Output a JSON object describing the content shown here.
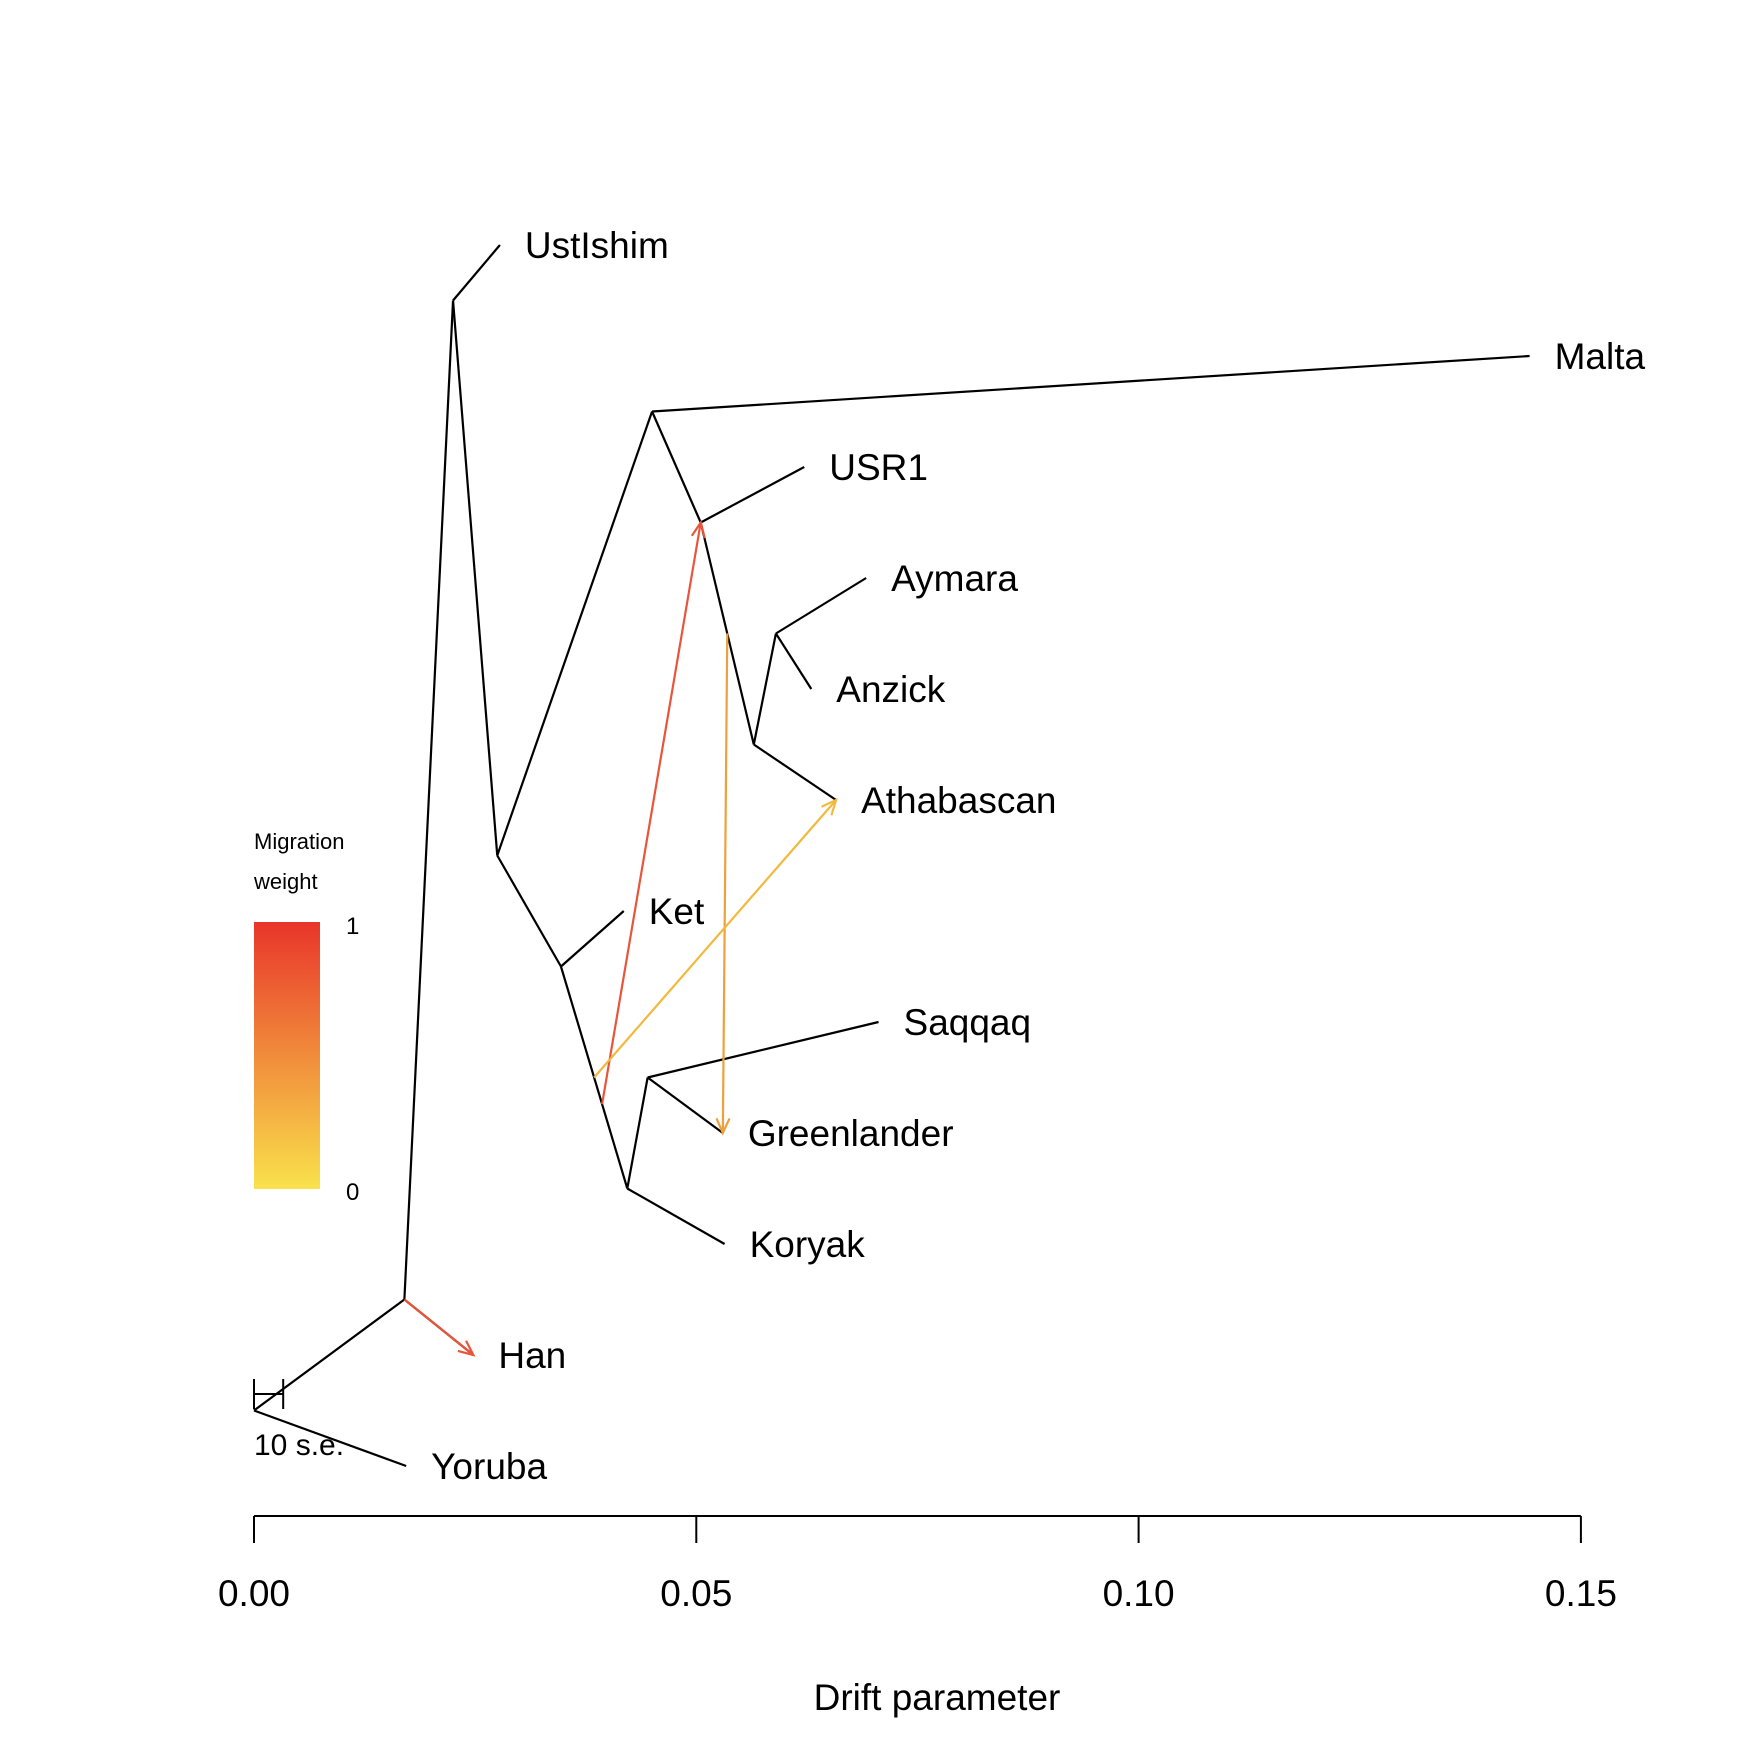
{
  "tree": {
    "nodes": {
      "root": {
        "drift": 0.0,
        "row": 11.0
      },
      "n1": {
        "drift": 0.017,
        "row": 10.0
      },
      "n2": {
        "drift": 0.0225,
        "row": 1.0
      },
      "n3": {
        "drift": 0.0275,
        "row": 6.0
      },
      "n4": {
        "drift": 0.045,
        "row": 2.0
      },
      "n5": {
        "drift": 0.0505,
        "row": 3.0
      },
      "n6": {
        "drift": 0.0565,
        "row": 5.0
      },
      "n7": {
        "drift": 0.059,
        "row": 4.0
      },
      "n8": {
        "drift": 0.0347,
        "row": 7.0
      },
      "n9": {
        "drift": 0.0422,
        "row": 9.0
      },
      "n10": {
        "drift": 0.0445,
        "row": 8.0
      },
      "Yoruba": {
        "drift": 0.0172,
        "row": 11.5
      },
      "Han": {
        "drift": 0.0248,
        "row": 10.5
      },
      "UstIshim": {
        "drift": 0.0278,
        "row": 0.5
      },
      "Malta": {
        "drift": 0.1442,
        "row": 1.5
      },
      "USR1": {
        "drift": 0.0622,
        "row": 2.5
      },
      "Aymara": {
        "drift": 0.0692,
        "row": 3.5
      },
      "Anzick": {
        "drift": 0.063,
        "row": 4.5
      },
      "Athabascan": {
        "drift": 0.0658,
        "row": 5.5
      },
      "Ket": {
        "drift": 0.0418,
        "row": 6.5
      },
      "Saqqaq": {
        "drift": 0.0706,
        "row": 7.5
      },
      "Greenlander": {
        "drift": 0.053,
        "row": 8.5
      },
      "Koryak": {
        "drift": 0.0532,
        "row": 9.5
      }
    },
    "edges": [
      [
        "root",
        "n1"
      ],
      [
        "root",
        "Yoruba"
      ],
      [
        "n1",
        "n2"
      ],
      [
        "n1",
        "Han"
      ],
      [
        "n2",
        "UstIshim"
      ],
      [
        "n2",
        "n3"
      ],
      [
        "n3",
        "n4"
      ],
      [
        "n3",
        "n8"
      ],
      [
        "n4",
        "Malta"
      ],
      [
        "n4",
        "n5"
      ],
      [
        "n5",
        "USR1"
      ],
      [
        "n5",
        "n6"
      ],
      [
        "n6",
        "n7"
      ],
      [
        "n6",
        "Athabascan"
      ],
      [
        "n7",
        "Aymara"
      ],
      [
        "n7",
        "Anzick"
      ],
      [
        "n8",
        "Ket"
      ],
      [
        "n8",
        "n9"
      ],
      [
        "n9",
        "n10"
      ],
      [
        "n9",
        "Koryak"
      ],
      [
        "n10",
        "Saqqaq"
      ],
      [
        "n10",
        "Greenlander"
      ]
    ],
    "leaves": [
      {
        "id": "UstIshim",
        "label": "UstIshim"
      },
      {
        "id": "Malta",
        "label": "Malta"
      },
      {
        "id": "USR1",
        "label": "USR1"
      },
      {
        "id": "Aymara",
        "label": "Aymara"
      },
      {
        "id": "Anzick",
        "label": "Anzick"
      },
      {
        "id": "Athabascan",
        "label": "Athabascan"
      },
      {
        "id": "Ket",
        "label": "Ket"
      },
      {
        "id": "Saqqaq",
        "label": "Saqqaq"
      },
      {
        "id": "Greenlander",
        "label": "Greenlander"
      },
      {
        "id": "Koryak",
        "label": "Koryak"
      },
      {
        "id": "Han",
        "label": "Han"
      },
      {
        "id": "Yoruba",
        "label": "Yoruba"
      }
    ]
  },
  "migrations": [
    {
      "from": "n9",
      "from_fraction": 0.38,
      "to": "n5",
      "weight": 0.88,
      "color": "#e8553a"
    },
    {
      "from": "n1",
      "from_fraction": 0.0,
      "to": "Han",
      "weight": 0.88,
      "color": "#e8553a"
    },
    {
      "from": "n6",
      "from_fraction": 0.5,
      "to": "Greenlander",
      "weight": 0.45,
      "color": "#eea03c"
    },
    {
      "from": "n9",
      "from_fraction": 0.5,
      "to": "Athabascan",
      "weight": 0.25,
      "color": "#f2b93e"
    }
  ],
  "axis": {
    "title": "Drift parameter",
    "ticks": [
      {
        "value": 0.0,
        "label": "0.00"
      },
      {
        "value": 0.05,
        "label": "0.05"
      },
      {
        "value": 0.1,
        "label": "0.10"
      },
      {
        "value": 0.15,
        "label": "0.15"
      }
    ]
  },
  "legend": {
    "title_line1": "Migration",
    "title_line2": "weight",
    "max_label": "1",
    "min_label": "0",
    "color_high": "#e8352a",
    "color_low": "#f9e24c"
  },
  "scale_bar": {
    "label": "10 s.e.",
    "width_drift": 0.0033
  },
  "colors": {
    "tree": "#000000"
  }
}
